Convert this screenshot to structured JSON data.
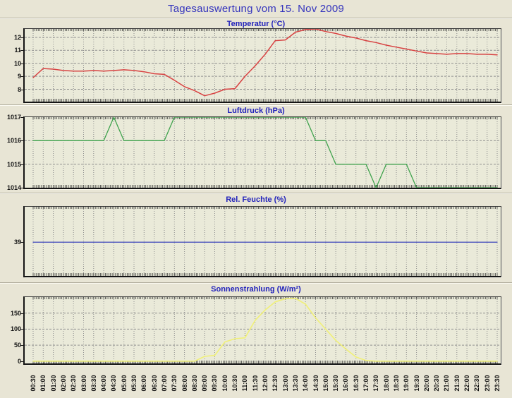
{
  "title": "Tagesauswertung vom 15. Nov 2009",
  "colors": {
    "page_bg": "#e8e5d5",
    "plot_bg": "#eaead9",
    "grid": "#8f8f8f",
    "axis_text": "#141414",
    "main_title": "#3535bd",
    "chart_title": "#2323bb"
  },
  "chart_data": {
    "type": "line",
    "grid": "on",
    "categories": [
      "00:30",
      "01:00",
      "01:30",
      "02:00",
      "02:30",
      "03:00",
      "03:30",
      "04:00",
      "04:30",
      "05:00",
      "05:30",
      "06:00",
      "06:30",
      "07:00",
      "07:30",
      "08:00",
      "08:30",
      "09:00",
      "09:30",
      "10:00",
      "10:30",
      "11:00",
      "11:30",
      "12:00",
      "12:30",
      "13:00",
      "13:30",
      "14:00",
      "14:30",
      "15:00",
      "15:30",
      "16:00",
      "16:30",
      "17:00",
      "17:30",
      "18:00",
      "18:30",
      "19:00",
      "19:30",
      "20:00",
      "20:30",
      "21:00",
      "21:30",
      "22:00",
      "22:30",
      "23:00",
      "23:30"
    ],
    "charts": [
      {
        "title": "Temperatur (°C)",
        "color": "#d84242",
        "line_width": 1.5,
        "ylim": [
          7.05,
          12.65
        ],
        "yticks": [
          8,
          9,
          10,
          11,
          12
        ],
        "ygrid": [
          8,
          9,
          10,
          11,
          12
        ],
        "values": [
          8.9,
          9.6,
          9.55,
          9.45,
          9.4,
          9.4,
          9.45,
          9.4,
          9.45,
          9.5,
          9.45,
          9.35,
          9.2,
          9.15,
          8.7,
          8.2,
          7.9,
          7.5,
          7.7,
          8.0,
          8.05,
          9.0,
          9.8,
          10.7,
          11.75,
          11.8,
          12.4,
          12.6,
          12.65,
          12.45,
          12.3,
          12.1,
          11.95,
          11.75,
          11.6,
          11.4,
          11.25,
          11.1,
          10.95,
          10.8,
          10.75,
          10.7,
          10.75,
          10.75,
          10.7,
          10.7,
          10.65
        ]
      },
      {
        "title": "Luftdruck (hPa)",
        "color": "#3fa24d",
        "line_width": 1.3,
        "ylim": [
          1014,
          1017
        ],
        "yticks": [
          1014,
          1015,
          1016,
          1017
        ],
        "ygrid": [
          1015,
          1016
        ],
        "values": [
          1016,
          1016,
          1016,
          1016,
          1016,
          1016,
          1016,
          1016,
          1017,
          1016,
          1016,
          1016,
          1016,
          1016,
          1017,
          1017,
          1017,
          1017,
          1017,
          1017,
          1017,
          1017,
          1017,
          1017,
          1017,
          1017,
          1017,
          1017,
          1016,
          1016,
          1015,
          1015,
          1015,
          1015,
          1014,
          1015,
          1015,
          1015,
          1014,
          1014,
          1014,
          1014,
          1014,
          1014,
          1014,
          1014,
          1014
        ]
      },
      {
        "title": "Rel. Feuchte (%)",
        "color": "#2b35b8",
        "line_width": 1.1,
        "ylim": [
          0,
          80
        ],
        "yticks": [
          39
        ],
        "ygrid": [],
        "values": [
          39,
          39,
          39,
          39,
          39,
          39,
          39,
          39,
          39,
          39,
          39,
          39,
          39,
          39,
          39,
          39,
          39,
          39,
          39,
          39,
          39,
          39,
          39,
          39,
          39,
          39,
          39,
          39,
          39,
          39,
          39,
          39,
          39,
          39,
          39,
          39,
          39,
          39,
          39,
          39,
          39,
          39,
          39,
          39,
          39,
          39,
          39
        ]
      },
      {
        "title": "Sonnenstrahlung (W/m²)",
        "color": "#f0f078",
        "line_width": 1.6,
        "ylim": [
          -7,
          200
        ],
        "yticks": [
          0,
          50,
          100,
          150
        ],
        "ygrid": [
          50,
          100,
          150
        ],
        "values": [
          0,
          0,
          0,
          0,
          0,
          0,
          0,
          0,
          0,
          0,
          0,
          0,
          0,
          0,
          0,
          0,
          0,
          15,
          18,
          60,
          70,
          73,
          127,
          160,
          185,
          195,
          196,
          178,
          135,
          100,
          65,
          38,
          13,
          2,
          0,
          0,
          0,
          0,
          0,
          0,
          0,
          0,
          0,
          0,
          0,
          0,
          0
        ]
      }
    ]
  }
}
